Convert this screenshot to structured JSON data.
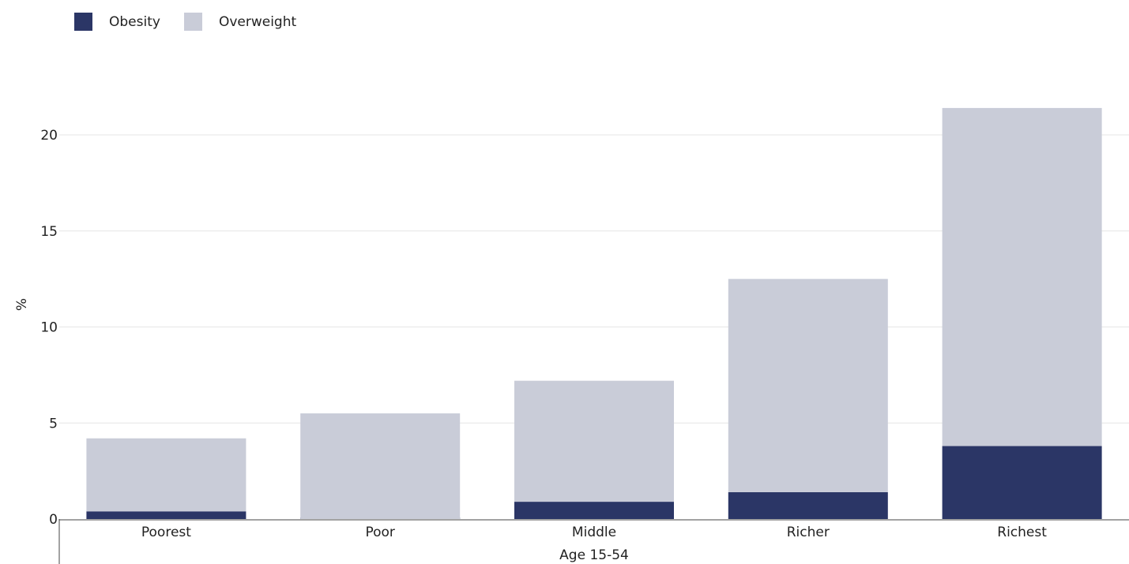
{
  "chart_data": {
    "type": "bar",
    "stacked": true,
    "categories": [
      "Poorest",
      "Poor",
      "Middle",
      "Richer",
      "Richest"
    ],
    "series": [
      {
        "name": "Obesity",
        "color": "#2b3666",
        "values": [
          0.4,
          0.0,
          0.9,
          1.4,
          3.8
        ]
      },
      {
        "name": "Overweight",
        "color": "#c9ccd8",
        "values": [
          3.8,
          5.5,
          6.3,
          11.1,
          17.6
        ]
      }
    ],
    "xlabel": "Age 15-54",
    "ylabel": "%",
    "ylim": [
      0,
      22
    ],
    "yticks": [
      0,
      5,
      10,
      15,
      20
    ],
    "grid": true,
    "legend_position": "top-left"
  }
}
